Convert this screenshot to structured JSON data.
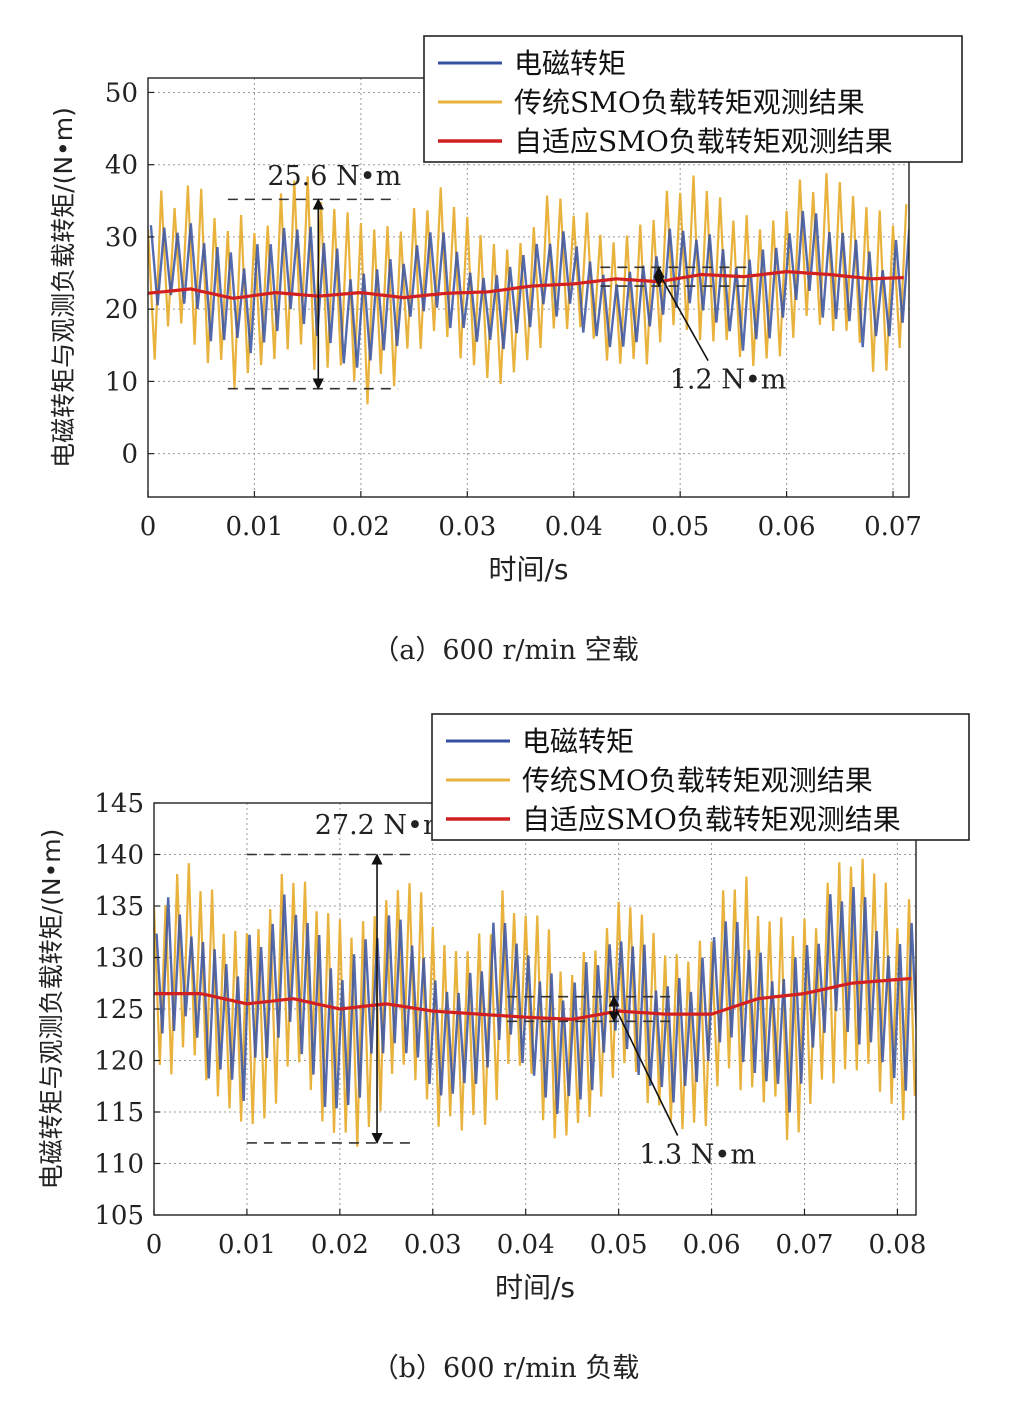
{
  "chart_data": [
    {
      "type": "line",
      "caption": "（a）600 r/min 空载",
      "xlabel": "时间/s",
      "ylabel": "电磁转矩与观测负载转矩/(N•m)",
      "xlim": [
        0,
        0.0715
      ],
      "ylim": [
        -6,
        52
      ],
      "xticks": [
        0,
        0.01,
        0.02,
        0.03,
        0.04,
        0.05,
        0.06,
        0.07
      ],
      "xtick_labels": [
        "0",
        "0.01",
        "0.02",
        "0.03",
        "0.04",
        "0.05",
        "0.06",
        "0.07"
      ],
      "yticks": [
        0,
        10,
        20,
        30,
        40,
        50
      ],
      "ytick_labels": [
        "0",
        "10",
        "20",
        "30",
        "40",
        "50"
      ],
      "grid": true,
      "legend_position": "top-right",
      "series": [
        {
          "name": "电磁转矩",
          "color": "#3650a0",
          "x": [
            0,
            0.008,
            0.016,
            0.024,
            0.032,
            0.04,
            0.048,
            0.056,
            0.064,
            0.0715
          ],
          "y_center": [
            23,
            24,
            22,
            21,
            23,
            22,
            23,
            24,
            24,
            24
          ],
          "y_amplitude": [
            7,
            8,
            8,
            7,
            7,
            6,
            6,
            7,
            8,
            7
          ]
        },
        {
          "name": "传统SMO负载转矩观测结果",
          "color": "#e8b23c",
          "x": [
            0,
            0.008,
            0.016,
            0.024,
            0.032,
            0.04,
            0.048,
            0.056,
            0.064,
            0.0715
          ],
          "y_center": [
            23,
            23.5,
            22,
            22,
            23,
            23,
            24,
            25,
            25,
            25
          ],
          "y_amplitude": [
            11,
            12,
            13,
            11,
            11,
            10,
            11,
            11,
            12,
            11
          ]
        },
        {
          "name": "自适应SMO负载转矩观测结果",
          "color": "#d22020",
          "x": [
            0,
            0.004,
            0.008,
            0.012,
            0.016,
            0.02,
            0.024,
            0.028,
            0.032,
            0.036,
            0.04,
            0.044,
            0.048,
            0.052,
            0.056,
            0.06,
            0.064,
            0.068,
            0.0715
          ],
          "y": [
            22.2,
            22.8,
            21.5,
            22.3,
            21.8,
            22.3,
            21.6,
            22.2,
            22.4,
            23.2,
            23.5,
            24.2,
            23.8,
            24.8,
            24.5,
            25.2,
            24.8,
            24.2,
            24.4
          ]
        }
      ],
      "annotations": [
        {
          "text": "25.6 N•m",
          "kind": "span",
          "x": 0.016,
          "y_low": 9,
          "y_high": 35.2,
          "line_x_range": [
            0.0075,
            0.0235
          ],
          "text_pos": [
            0.0175,
            37.2
          ]
        },
        {
          "text": "1.2 N•m",
          "kind": "span",
          "x": 0.048,
          "y_low": 23.2,
          "y_high": 25.8,
          "line_x_range": [
            0.0425,
            0.0565
          ],
          "text_pos": [
            0.0545,
            9
          ]
        }
      ]
    },
    {
      "type": "line",
      "caption": "（b）600 r/min 负载",
      "xlabel": "时间/s",
      "ylabel": "电磁转矩与观测负载转矩/(N•m)",
      "xlim": [
        0,
        0.082
      ],
      "ylim": [
        105,
        145
      ],
      "xticks": [
        0,
        0.01,
        0.02,
        0.03,
        0.04,
        0.05,
        0.06,
        0.07,
        0.08
      ],
      "xtick_labels": [
        "0",
        "0.01",
        "0.02",
        "0.03",
        "0.04",
        "0.05",
        "0.06",
        "0.07",
        "0.08"
      ],
      "yticks": [
        105,
        110,
        115,
        120,
        125,
        130,
        135,
        140,
        145
      ],
      "ytick_labels": [
        "105",
        "110",
        "115",
        "120",
        "125",
        "130",
        "135",
        "140",
        "145"
      ],
      "grid": true,
      "legend_position": "top-right",
      "series": [
        {
          "name": "电磁转矩",
          "color": "#3650a0",
          "x": [
            0,
            0.01,
            0.02,
            0.03,
            0.04,
            0.05,
            0.06,
            0.07,
            0.082
          ],
          "y_center": [
            126,
            126,
            125,
            125,
            124,
            124,
            124,
            126,
            128
          ],
          "y_amplitude": [
            7,
            8,
            8,
            7,
            7,
            7,
            7,
            8,
            8
          ]
        },
        {
          "name": "传统SMO负载转矩观测结果",
          "color": "#e8b23c",
          "x": [
            0,
            0.01,
            0.02,
            0.03,
            0.04,
            0.05,
            0.06,
            0.07,
            0.082
          ],
          "y_center": [
            126,
            126,
            125,
            125,
            124,
            124,
            124,
            126,
            128
          ],
          "y_amplitude": [
            10,
            11,
            11,
            10,
            10,
            10,
            10,
            11,
            11
          ]
        },
        {
          "name": "自适应SMO负载转矩观测结果",
          "color": "#d22020",
          "x": [
            0,
            0.005,
            0.01,
            0.015,
            0.02,
            0.025,
            0.03,
            0.035,
            0.04,
            0.045,
            0.05,
            0.055,
            0.06,
            0.065,
            0.07,
            0.075,
            0.082
          ],
          "y": [
            126.5,
            126.5,
            125.5,
            126,
            125,
            125.5,
            124.8,
            124.5,
            124.2,
            124,
            124.8,
            124.5,
            124.5,
            126,
            126.5,
            127.5,
            128
          ]
        }
      ],
      "annotations": [
        {
          "text": "27.2 N•m",
          "kind": "span",
          "x": 0.024,
          "y_low": 112,
          "y_high": 140,
          "line_x_range": [
            0.01,
            0.028
          ],
          "text_pos": [
            0.0245,
            142
          ]
        },
        {
          "text": "1.3 N•m",
          "kind": "span",
          "x": 0.0495,
          "y_low": 123.8,
          "y_high": 126.2,
          "line_x_range": [
            0.038,
            0.056
          ],
          "text_pos": [
            0.0585,
            110
          ]
        }
      ]
    }
  ]
}
